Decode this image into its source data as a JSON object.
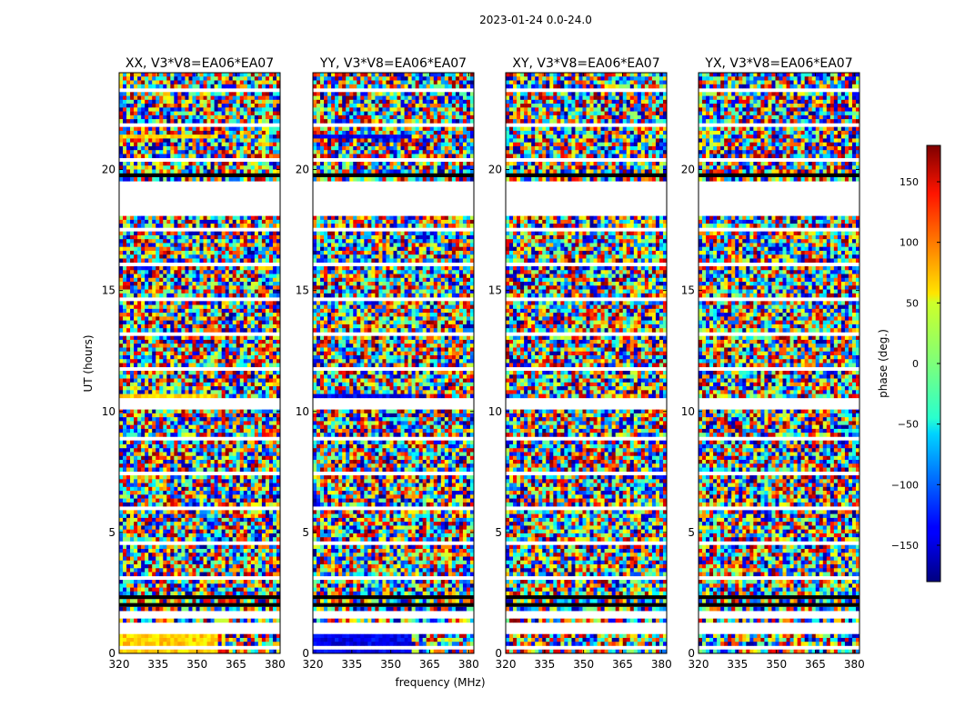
{
  "figure": {
    "suptitle": "2023-01-24 0.0-24.0"
  },
  "chart_data": {
    "type": "heatmap",
    "title": "2023-01-24 0.0-24.0",
    "xlabel": "frequency (MHz)",
    "ylabel": "UT (hours)",
    "xlim": [
      320,
      382
    ],
    "ylim": [
      0,
      24
    ],
    "x_ticks": [
      320,
      335,
      350,
      365,
      380
    ],
    "y_ticks": [
      0,
      5,
      10,
      15,
      20
    ],
    "panels": [
      {
        "name": "XX",
        "title": "XX, V3*V8=EA06*EA07",
        "dominant_band_phase": 60
      },
      {
        "name": "YY",
        "title": "YY, V3*V8=EA06*EA07",
        "dominant_band_phase": -140
      },
      {
        "name": "XY",
        "title": "XY, V3*V8=EA06*EA07",
        "dominant_band_phase": null
      },
      {
        "name": "YX",
        "title": "YX, V3*V8=EA06*EA07",
        "dominant_band_phase": null
      }
    ],
    "flagged_time_ranges_hours": [
      [
        18.1,
        19.5
      ],
      [
        10.1,
        10.6
      ],
      [
        0.85,
        1.3
      ],
      [
        1.5,
        1.8
      ]
    ],
    "wide_gap_hours": [
      [
        1.95,
        2.1
      ],
      [
        2.25,
        2.4
      ],
      [
        19.65,
        19.8
      ]
    ],
    "colorbar": {
      "label": "phase (deg.)",
      "range": [
        -180,
        180
      ],
      "ticks": [
        -150,
        -100,
        -50,
        0,
        50,
        100,
        150
      ],
      "colormap": "jet"
    }
  }
}
